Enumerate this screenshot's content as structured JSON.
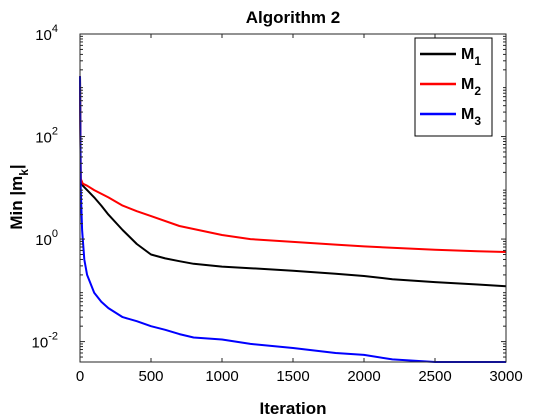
{
  "chart_data": {
    "type": "line",
    "title": "Algorithm 2",
    "xlabel": "Iteration",
    "ylabel": "Min |m_k|",
    "ylabel_base": "Min |m",
    "ylabel_sub": "k",
    "ylabel_end": "|",
    "xlim": [
      0,
      3000
    ],
    "ylim": [
      0.004,
      10000
    ],
    "yscale": "log",
    "xticks": [
      0,
      500,
      1000,
      1500,
      2000,
      2500,
      3000
    ],
    "xtick_labels": [
      "0",
      "500",
      "1000",
      "1500",
      "2000",
      "2500",
      "3000"
    ],
    "yticks": [
      {
        "value": 0.01,
        "base": "10",
        "exp": "-2"
      },
      {
        "value": 1,
        "base": "10",
        "exp": "0"
      },
      {
        "value": 100,
        "base": "10",
        "exp": "2"
      },
      {
        "value": 10000,
        "base": "10",
        "exp": "4"
      }
    ],
    "grid": false,
    "legend_position": "top-right",
    "series": [
      {
        "name": "M_1",
        "label_base": "M",
        "label_sub": "1",
        "color": "#000000",
        "x": [
          0,
          5,
          20,
          50,
          100,
          150,
          200,
          300,
          400,
          500,
          600,
          700,
          800,
          1000,
          1200,
          1500,
          1800,
          2000,
          2200,
          2500,
          2800,
          3000
        ],
        "y": [
          1500,
          15,
          11,
          9,
          6.5,
          4.5,
          3,
          1.5,
          0.8,
          0.5,
          0.42,
          0.37,
          0.33,
          0.29,
          0.27,
          0.24,
          0.21,
          0.19,
          0.165,
          0.145,
          0.13,
          0.12
        ]
      },
      {
        "name": "M_2",
        "label_base": "M",
        "label_sub": "2",
        "color": "#ff0000",
        "x": [
          0,
          5,
          20,
          50,
          100,
          200,
          300,
          400,
          500,
          700,
          1000,
          1200,
          1500,
          1800,
          2000,
          2500,
          2800,
          3000
        ],
        "y": [
          1500,
          15,
          12,
          11,
          9,
          6.5,
          4.5,
          3.5,
          2.8,
          1.8,
          1.2,
          1.0,
          0.88,
          0.78,
          0.72,
          0.62,
          0.58,
          0.56
        ]
      },
      {
        "name": "M_3",
        "label_base": "M",
        "label_sub": "3",
        "color": "#0000ff",
        "x": [
          0,
          5,
          15,
          30,
          50,
          100,
          150,
          200,
          300,
          400,
          500,
          600,
          700,
          800,
          1000,
          1200,
          1500,
          1800,
          2000,
          2200,
          2500,
          2800,
          3000
        ],
        "y": [
          1500,
          10,
          1.5,
          0.4,
          0.2,
          0.09,
          0.06,
          0.045,
          0.03,
          0.025,
          0.02,
          0.017,
          0.014,
          0.012,
          0.011,
          0.009,
          0.0075,
          0.006,
          0.0055,
          0.0045,
          0.004,
          0.004,
          0.004
        ]
      }
    ]
  }
}
